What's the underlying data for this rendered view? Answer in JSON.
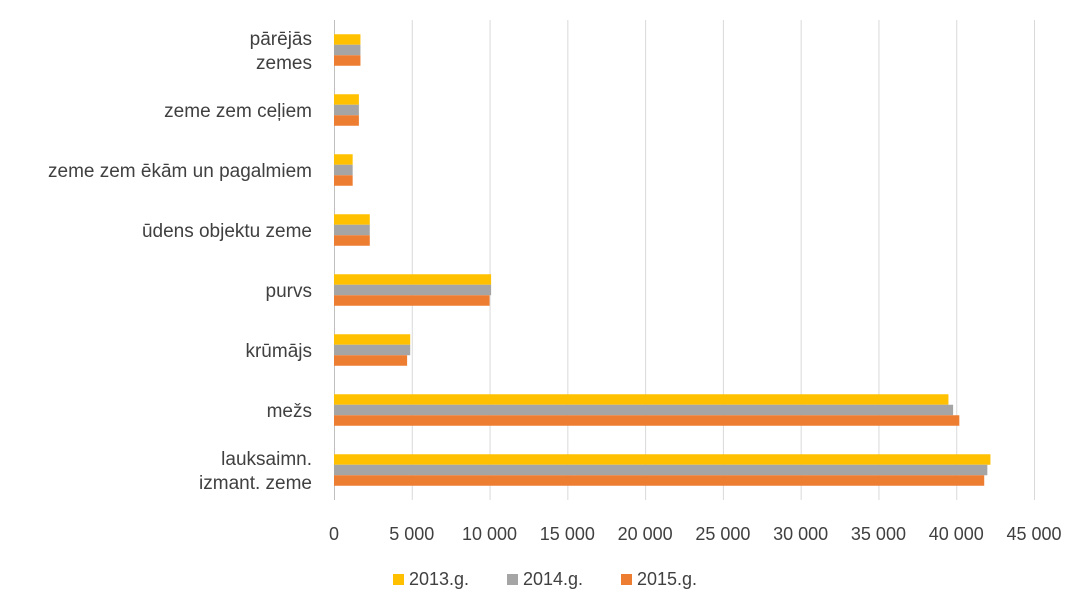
{
  "chart_data": {
    "type": "bar",
    "orientation": "horizontal",
    "title": "",
    "xlabel": "",
    "ylabel": "",
    "categories": [
      [
        "lauksaimn.",
        "izmant. zeme"
      ],
      [
        "mežs"
      ],
      [
        "krūmājs"
      ],
      [
        "purvs"
      ],
      [
        "ūdens objektu zeme"
      ],
      [
        "zeme zem ēkām un pagalmiem"
      ],
      [
        "zeme zem ceļiem"
      ],
      [
        "pārējās",
        "zemes"
      ]
    ],
    "series": [
      {
        "name": "2013.g.",
        "color": "#FFC000",
        "values": [
          42200,
          39500,
          4900,
          10100,
          2300,
          1200,
          1600,
          1700
        ]
      },
      {
        "name": "2014.g.",
        "color": "#A5A5A5",
        "values": [
          42000,
          39800,
          4900,
          10100,
          2300,
          1200,
          1600,
          1700
        ]
      },
      {
        "name": "2015.g.",
        "color": "#ED7D31",
        "values": [
          41800,
          40200,
          4700,
          10000,
          2300,
          1200,
          1600,
          1700
        ]
      }
    ],
    "xlim": [
      0,
      45000
    ],
    "xticks": [
      0,
      5000,
      10000,
      15000,
      20000,
      25000,
      30000,
      35000,
      40000,
      45000
    ],
    "xtick_labels": [
      "0",
      "5 000",
      "10 000",
      "15 000",
      "20 000",
      "25 000",
      "30 000",
      "35 000",
      "40 000",
      "45 000"
    ],
    "grid": "vertical",
    "legend": "bottom"
  }
}
